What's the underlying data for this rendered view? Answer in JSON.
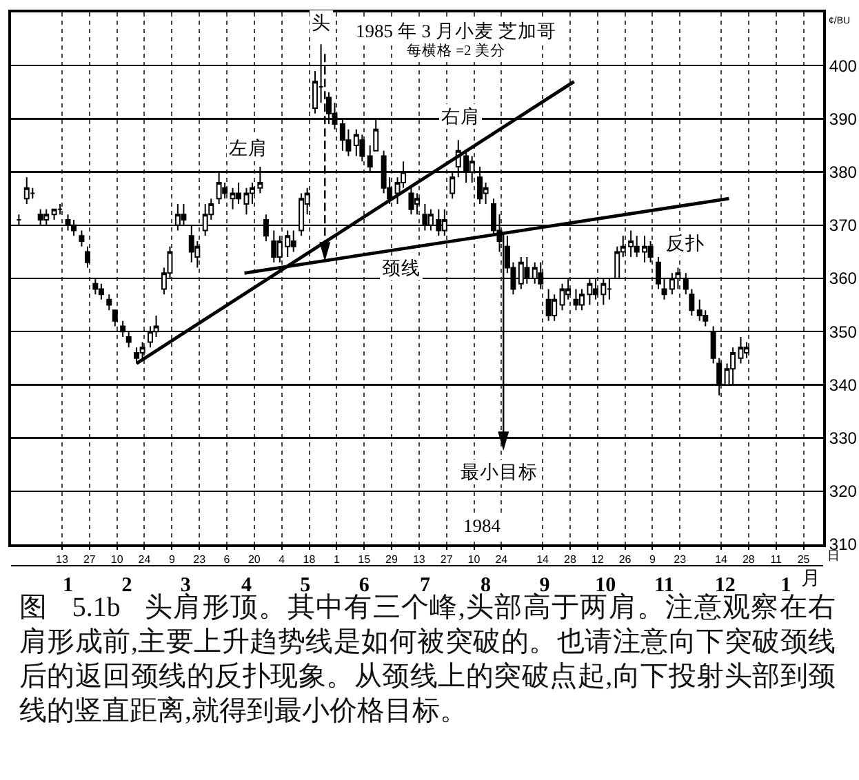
{
  "chart_data": {
    "type": "candlestick",
    "title": "1985 年 3 月小麦 芝加哥",
    "subtitle": "每横格 =2 美分",
    "xlabel": "日",
    "x2label": "月",
    "ylabel": "¢/BU",
    "x": [
      "1983-12-22",
      "1983-12-26",
      "1983-12-29",
      "1984-01-02",
      "1984-01-05",
      "1984-01-09",
      "1984-01-12",
      "1984-01-16",
      "1984-01-19",
      "1984-01-23",
      "1984-01-26",
      "1984-01-30",
      "1984-02-02",
      "1984-02-06",
      "1984-02-09",
      "1984-02-13",
      "1984-02-16",
      "1984-02-20",
      "1984-02-23",
      "1984-02-27",
      "1984-03-01",
      "1984-03-05",
      "1984-03-08",
      "1984-03-12",
      "1984-03-15",
      "1984-03-19",
      "1984-03-22",
      "1984-03-26",
      "1984-03-29",
      "1984-04-02",
      "1984-04-05",
      "1984-04-09",
      "1984-04-12",
      "1984-04-16",
      "1984-04-19",
      "1984-04-23",
      "1984-04-26",
      "1984-04-30",
      "1984-05-03",
      "1984-05-07",
      "1984-05-10",
      "1984-05-14",
      "1984-05-17",
      "1984-05-21",
      "1984-05-24",
      "1984-05-28",
      "1984-05-31",
      "1984-06-04",
      "1984-06-07",
      "1984-06-11",
      "1984-06-14",
      "1984-06-18",
      "1984-06-21",
      "1984-06-25",
      "1984-06-28",
      "1984-07-02",
      "1984-07-05",
      "1984-07-09",
      "1984-07-12",
      "1984-07-16",
      "1984-07-19",
      "1984-07-23",
      "1984-07-26",
      "1984-07-30",
      "1984-08-02",
      "1984-08-06",
      "1984-08-09",
      "1984-08-13",
      "1984-08-16",
      "1984-08-20",
      "1984-08-23",
      "1984-08-27",
      "1984-08-30",
      "1984-09-03",
      "1984-09-06",
      "1984-09-10",
      "1984-09-13",
      "1984-09-17",
      "1984-09-20",
      "1984-09-24",
      "1984-09-27",
      "1984-10-01",
      "1984-10-04",
      "1984-10-08",
      "1984-10-11",
      "1984-10-15",
      "1984-10-18",
      "1984-10-22",
      "1984-10-25",
      "1984-10-29",
      "1984-11-01",
      "1984-11-05",
      "1984-11-08",
      "1984-11-12",
      "1984-11-15",
      "1984-11-19",
      "1984-11-22",
      "1984-11-26",
      "1984-11-29",
      "1984-12-03",
      "1984-12-06",
      "1984-12-10",
      "1984-12-13",
      "1984-12-17",
      "1984-12-20",
      "1984-12-24",
      "1984-12-27"
    ],
    "ohlc": [
      [
        371,
        372,
        370,
        371
      ],
      [
        375,
        379,
        374,
        377
      ],
      [
        376,
        377,
        375,
        376
      ],
      [
        372,
        373,
        370,
        371
      ],
      [
        371,
        373,
        370,
        372
      ],
      [
        372,
        373,
        371,
        373
      ],
      [
        373,
        374,
        372,
        373
      ],
      [
        371,
        372,
        369,
        370
      ],
      [
        370,
        371,
        368,
        369
      ],
      [
        368,
        369,
        366,
        367
      ],
      [
        365,
        366,
        362,
        363
      ],
      [
        359,
        360,
        357,
        358
      ],
      [
        358,
        359,
        356,
        357
      ],
      [
        356,
        357,
        354,
        355
      ],
      [
        354,
        354,
        351,
        352
      ],
      [
        351,
        352,
        349,
        350
      ],
      [
        349,
        350,
        347,
        348
      ],
      [
        346,
        347,
        344,
        345
      ],
      [
        346,
        348,
        345,
        347
      ],
      [
        348,
        351,
        347,
        350
      ],
      [
        350,
        353,
        349,
        351
      ],
      [
        358,
        362,
        357,
        361
      ],
      [
        361,
        366,
        360,
        365
      ],
      [
        370,
        374,
        369,
        372
      ],
      [
        372,
        374,
        370,
        371
      ],
      [
        368,
        370,
        363,
        365
      ],
      [
        364,
        367,
        362,
        366
      ],
      [
        369,
        374,
        368,
        372
      ],
      [
        372,
        375,
        371,
        374
      ],
      [
        375,
        380,
        374,
        378
      ],
      [
        377,
        378,
        375,
        376
      ],
      [
        375,
        377,
        373,
        376
      ],
      [
        376,
        378,
        374,
        375
      ],
      [
        374,
        377,
        372,
        376
      ],
      [
        376,
        378,
        374,
        377
      ],
      [
        377,
        381,
        376,
        378
      ],
      [
        371,
        372,
        367,
        368
      ],
      [
        367,
        369,
        363,
        364
      ],
      [
        364,
        368,
        363,
        367
      ],
      [
        366,
        369,
        364,
        368
      ],
      [
        367,
        369,
        365,
        366
      ],
      [
        369,
        376,
        368,
        375
      ],
      [
        374,
        377,
        372,
        376
      ],
      [
        392,
        399,
        391,
        397
      ],
      [
        396,
        404,
        393,
        396
      ],
      [
        394,
        395,
        389,
        391
      ],
      [
        391,
        393,
        388,
        389
      ],
      [
        389,
        390,
        384,
        386
      ],
      [
        386,
        388,
        383,
        384
      ],
      [
        385,
        388,
        383,
        387
      ],
      [
        386,
        387,
        382,
        383
      ],
      [
        383,
        385,
        380,
        381
      ],
      [
        384,
        390,
        384,
        388
      ],
      [
        383,
        384,
        376,
        377
      ],
      [
        377,
        379,
        374,
        375
      ],
      [
        376,
        379,
        374,
        378
      ],
      [
        378,
        382,
        377,
        380
      ],
      [
        376,
        377,
        372,
        373
      ],
      [
        374,
        376,
        372,
        375
      ],
      [
        372,
        374,
        369,
        370
      ],
      [
        370,
        373,
        369,
        372
      ],
      [
        371,
        373,
        368,
        369
      ],
      [
        369,
        373,
        368,
        371
      ],
      [
        376,
        380,
        375,
        379
      ],
      [
        381,
        386,
        379,
        384
      ],
      [
        383,
        384,
        378,
        380
      ],
      [
        380,
        383,
        378,
        382
      ],
      [
        379,
        381,
        374,
        375
      ],
      [
        376,
        378,
        374,
        377
      ],
      [
        374,
        375,
        368,
        369
      ],
      [
        369,
        372,
        365,
        367
      ],
      [
        366,
        368,
        361,
        362
      ],
      [
        362,
        363,
        357,
        358
      ],
      [
        359,
        364,
        358,
        363
      ],
      [
        362,
        364,
        359,
        360
      ],
      [
        360,
        363,
        359,
        362
      ],
      [
        361,
        363,
        358,
        359
      ],
      [
        356,
        358,
        352,
        353
      ],
      [
        353,
        357,
        352,
        356
      ],
      [
        355,
        359,
        354,
        358
      ],
      [
        357,
        360,
        356,
        358
      ],
      [
        356,
        358,
        354,
        355
      ],
      [
        355,
        358,
        354,
        357
      ],
      [
        357,
        360,
        355,
        359
      ],
      [
        358,
        360,
        356,
        357
      ],
      [
        357,
        360,
        355,
        359
      ],
      [
        358,
        360,
        356,
        358
      ],
      [
        360,
        366,
        360,
        365
      ],
      [
        365,
        368,
        364,
        366
      ],
      [
        366,
        369,
        364,
        367
      ],
      [
        366,
        368,
        364,
        365
      ],
      [
        365,
        368,
        363,
        366
      ],
      [
        366,
        367,
        363,
        364
      ],
      [
        363,
        364,
        358,
        359
      ],
      [
        358,
        360,
        356,
        357
      ],
      [
        358,
        361,
        357,
        360
      ],
      [
        360,
        362,
        358,
        361
      ],
      [
        360,
        361,
        357,
        358
      ],
      [
        357,
        358,
        353,
        354
      ],
      [
        354,
        356,
        352,
        353
      ],
      [
        353,
        354,
        351,
        352
      ],
      [
        350,
        351,
        344,
        345
      ],
      [
        344,
        345,
        338,
        340
      ],
      [
        340,
        344,
        340,
        343
      ],
      [
        343,
        347,
        340,
        346
      ],
      [
        345,
        349,
        344,
        347
      ],
      [
        346,
        348,
        345,
        347
      ]
    ],
    "color": "#000000",
    "series": [
      {
        "type": "line",
        "color": "#000000",
        "x": [
          "1984-02-20",
          "1984-09-30"
        ],
        "values": [
          344,
          397
        ]
      },
      {
        "type": "line",
        "color": "#000000",
        "x": [
          "1984-04-15",
          "1984-12-18"
        ],
        "values": [
          361,
          375
        ]
      }
    ],
    "xlim": [
      "1983-12-18",
      "1985-02-04"
    ],
    "xticks": [
      {
        "value": "1984-01-13",
        "label": "13"
      },
      {
        "value": "1984-01-27",
        "label": "27"
      },
      {
        "value": "1984-02-10",
        "label": "10"
      },
      {
        "value": "1984-02-24",
        "label": "24"
      },
      {
        "value": "1984-03-09",
        "label": "9"
      },
      {
        "value": "1984-03-23",
        "label": "23"
      },
      {
        "value": "1984-04-06",
        "label": "6"
      },
      {
        "value": "1984-04-20",
        "label": "20"
      },
      {
        "value": "1984-05-04",
        "label": "4"
      },
      {
        "value": "1984-05-18",
        "label": "18"
      },
      {
        "value": "1984-06-01",
        "label": "1"
      },
      {
        "value": "1984-06-15",
        "label": "15"
      },
      {
        "value": "1984-06-29",
        "label": "29"
      },
      {
        "value": "1984-07-13",
        "label": "13"
      },
      {
        "value": "1984-07-27",
        "label": "27"
      },
      {
        "value": "1984-08-10",
        "label": "10"
      },
      {
        "value": "1984-08-24",
        "label": "24"
      },
      {
        "value": "1984-09-14",
        "label": "14"
      },
      {
        "value": "1984-09-28",
        "label": "28"
      },
      {
        "value": "1984-10-12",
        "label": "12"
      },
      {
        "value": "1984-10-26",
        "label": "26"
      },
      {
        "value": "1984-11-09",
        "label": "9"
      },
      {
        "value": "1984-11-23",
        "label": "23"
      },
      {
        "value": "1984-12-14",
        "label": "14"
      },
      {
        "value": "1984-12-28",
        "label": "28"
      },
      {
        "value": "1985-01-11",
        "label": "11"
      },
      {
        "value": "1985-01-25",
        "label": "25"
      }
    ],
    "x2lim": [
      "1983-12-18",
      "1985-02-04"
    ],
    "x2ticks": [
      {
        "value": "1984-01-16",
        "label": "1"
      },
      {
        "value": "1984-02-15",
        "label": "2"
      },
      {
        "value": "1984-03-16",
        "label": "3"
      },
      {
        "value": "1984-04-16",
        "label": "4"
      },
      {
        "value": "1984-05-16",
        "label": "5"
      },
      {
        "value": "1984-06-15",
        "label": "6"
      },
      {
        "value": "1984-07-16",
        "label": "7"
      },
      {
        "value": "1984-08-16",
        "label": "8"
      },
      {
        "value": "1984-09-15",
        "label": "9"
      },
      {
        "value": "1984-10-16",
        "label": "10"
      },
      {
        "value": "1984-11-15",
        "label": "11"
      },
      {
        "value": "1984-12-16",
        "label": "12"
      },
      {
        "value": "1985-01-16",
        "label": "1"
      }
    ],
    "ylim": [
      310,
      410
    ],
    "yticks": [
      310,
      320,
      330,
      340,
      350,
      360,
      370,
      380,
      390,
      400
    ],
    "grid": true,
    "annotations": [
      {
        "text": "头",
        "x": "1984-05-24",
        "y": 404
      },
      "最小目标",
      {
        "text": "左肩",
        "x": "1984-04-17",
        "y": 384.5
      },
      {
        "text": "右肩",
        "x": "1984-08-03",
        "y": 390.4
      },
      {
        "text": "颈线",
        "x": "1984-07-04",
        "y": 362
      },
      {
        "text": "反扑",
        "x": "1984-11-26",
        "y": 366.7
      },
      {
        "text": "1984",
        "x": "1984-08-14",
        "y": 313.4
      },
      "图 5.1b 头肩形顶。其中有三个峰,头部高于两肩。注意观察在右肩形成前,主要上升趋势线是如何被突破的。也请注意向下突破颈线后的返回颈线的反扑现象。从颈线上的突破点起,向下投射头部到颈线的竖直距离,就得到最小价格目标。"
    ]
  }
}
